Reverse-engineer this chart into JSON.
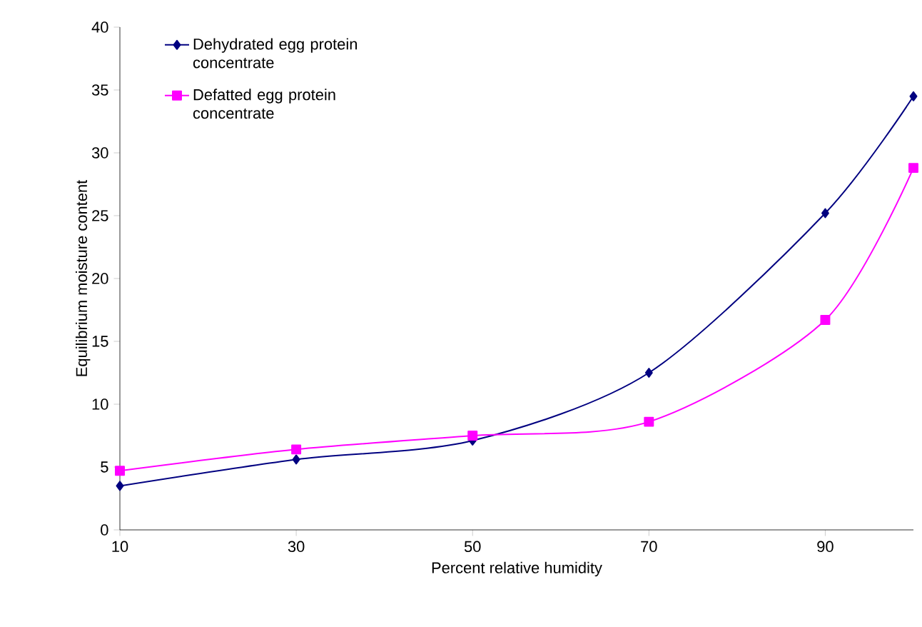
{
  "chart_data": {
    "type": "line",
    "xlabel": "Percent relative humidity",
    "ylabel": "Equilibrium moisture content",
    "xlim": [
      10,
      100
    ],
    "xticks": [
      10,
      30,
      50,
      70,
      90
    ],
    "ylim": [
      0,
      40
    ],
    "yticks": [
      0,
      5,
      10,
      15,
      20,
      25,
      30,
      35,
      40
    ],
    "grid": false,
    "legend": "top left",
    "series": [
      {
        "name": "Dehydrated egg protein concentrate",
        "color": "#000080",
        "marker": "diamond",
        "x": [
          10,
          30,
          50,
          70,
          90,
          100
        ],
        "values": [
          3.5,
          5.6,
          7.1,
          12.5,
          25.2,
          34.5
        ]
      },
      {
        "name": "Defatted egg protein concentrate",
        "color": "#ff00ff",
        "marker": "square",
        "x": [
          10,
          30,
          50,
          70,
          90,
          100
        ],
        "values": [
          4.7,
          6.4,
          7.5,
          8.6,
          16.7,
          28.8
        ]
      }
    ]
  }
}
